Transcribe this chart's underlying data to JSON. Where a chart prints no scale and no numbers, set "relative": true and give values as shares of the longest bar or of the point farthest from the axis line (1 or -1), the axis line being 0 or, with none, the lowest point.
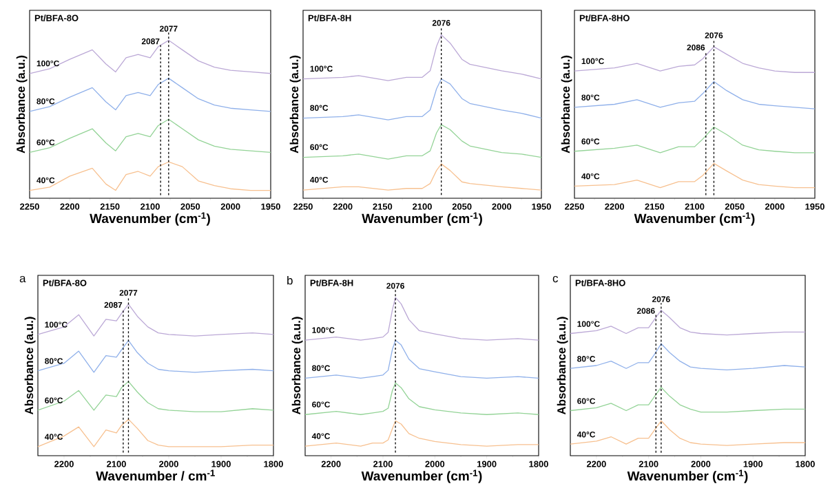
{
  "chart_data": [
    {
      "type": "line",
      "relative": true,
      "title": "Pt/BFA-8O",
      "xlabel": "Wavenumber (cm$^{-1}$)",
      "ylabel": "Absorbance (a.u.)",
      "xlim": [
        2250,
        1950
      ],
      "xticks": [
        2250,
        2200,
        2150,
        2100,
        2050,
        2000,
        1950
      ],
      "x": [
        2250,
        2225,
        2200,
        2172,
        2155,
        2143,
        2130,
        2115,
        2100,
        2090,
        2077,
        2060,
        2040,
        2020,
        2000,
        1975,
        1950
      ],
      "series": [
        {
          "name": "100°C",
          "color": "#bba8d6",
          "values": [
            0.79,
            0.82,
            0.88,
            0.94,
            0.85,
            0.8,
            0.89,
            0.91,
            0.89,
            0.96,
            1.0,
            0.94,
            0.87,
            0.83,
            0.81,
            0.8,
            0.79
          ]
        },
        {
          "name": "80°C",
          "color": "#8fb0ea",
          "values": [
            0.55,
            0.58,
            0.64,
            0.7,
            0.61,
            0.56,
            0.65,
            0.67,
            0.65,
            0.72,
            0.76,
            0.7,
            0.63,
            0.59,
            0.57,
            0.56,
            0.55
          ]
        },
        {
          "name": "60°C",
          "color": "#93d396",
          "values": [
            0.29,
            0.32,
            0.38,
            0.44,
            0.35,
            0.3,
            0.39,
            0.41,
            0.39,
            0.46,
            0.5,
            0.44,
            0.37,
            0.33,
            0.31,
            0.3,
            0.29
          ]
        },
        {
          "name": "40°C",
          "color": "#f7c08f",
          "values": [
            0.05,
            0.07,
            0.14,
            0.19,
            0.09,
            0.05,
            0.15,
            0.17,
            0.14,
            0.2,
            0.23,
            0.2,
            0.11,
            0.08,
            0.06,
            0.05,
            0.05
          ]
        }
      ],
      "ref_lines": [
        {
          "axis": "x",
          "value": 2087,
          "label": "2087",
          "color": "#000000",
          "line_style": "dashed"
        },
        {
          "axis": "x",
          "value": 2077,
          "label": "2077",
          "color": "#000000",
          "line_style": "dashed"
        }
      ]
    },
    {
      "type": "line",
      "relative": true,
      "title": "Pt/BFA-8H",
      "xlabel": "Wavenumber (cm$^{-1}$)",
      "ylabel": "Absorbance (a.u.)",
      "xlim": [
        2250,
        1950
      ],
      "xticks": [
        2250,
        2200,
        2150,
        2100,
        2050,
        2000,
        1950
      ],
      "x": [
        2250,
        2200,
        2180,
        2143,
        2120,
        2100,
        2090,
        2082,
        2076,
        2065,
        2050,
        2040,
        2020,
        2000,
        1975,
        1950
      ],
      "series": [
        {
          "name": "100°C",
          "color": "#bba8d6",
          "values": [
            0.73,
            0.74,
            0.75,
            0.72,
            0.74,
            0.74,
            0.78,
            0.93,
            1.0,
            0.95,
            0.85,
            0.82,
            0.8,
            0.78,
            0.76,
            0.73
          ]
        },
        {
          "name": "80°C",
          "color": "#8fb0ea",
          "values": [
            0.49,
            0.5,
            0.51,
            0.48,
            0.5,
            0.5,
            0.54,
            0.67,
            0.73,
            0.7,
            0.61,
            0.58,
            0.56,
            0.54,
            0.52,
            0.49
          ]
        },
        {
          "name": "60°C",
          "color": "#93d396",
          "values": [
            0.25,
            0.26,
            0.27,
            0.24,
            0.26,
            0.26,
            0.29,
            0.4,
            0.45,
            0.42,
            0.35,
            0.32,
            0.3,
            0.28,
            0.27,
            0.25
          ]
        },
        {
          "name": "40°C",
          "color": "#f7c08f",
          "values": [
            0.05,
            0.07,
            0.07,
            0.05,
            0.06,
            0.06,
            0.09,
            0.17,
            0.21,
            0.17,
            0.1,
            0.09,
            0.08,
            0.07,
            0.06,
            0.05
          ]
        }
      ],
      "ref_lines": [
        {
          "axis": "x",
          "value": 2076,
          "label": "2076",
          "color": "#000000",
          "line_style": "dashed"
        }
      ]
    },
    {
      "type": "line",
      "relative": true,
      "title": "Pt/BFA-8HO",
      "xlabel": "Wavenumber (cm$^{-1}$)",
      "ylabel": "Absorbance (a.u.)",
      "xlim": [
        2250,
        1950
      ],
      "xticks": [
        2250,
        2200,
        2150,
        2100,
        2050,
        2000,
        1950
      ],
      "x": [
        2250,
        2200,
        2172,
        2143,
        2120,
        2100,
        2090,
        2076,
        2060,
        2040,
        2020,
        2000,
        1975,
        1950
      ],
      "series": [
        {
          "name": "100°C",
          "color": "#bba8d6",
          "values": [
            0.84,
            0.86,
            0.89,
            0.84,
            0.87,
            0.88,
            0.92,
            1.0,
            0.95,
            0.89,
            0.86,
            0.84,
            0.83,
            0.83
          ]
        },
        {
          "name": "80°C",
          "color": "#8fb0ea",
          "values": [
            0.6,
            0.62,
            0.65,
            0.6,
            0.63,
            0.64,
            0.69,
            0.77,
            0.71,
            0.65,
            0.62,
            0.61,
            0.6,
            0.59
          ]
        },
        {
          "name": "60°C",
          "color": "#93d396",
          "values": [
            0.31,
            0.33,
            0.35,
            0.3,
            0.34,
            0.34,
            0.39,
            0.47,
            0.42,
            0.35,
            0.32,
            0.31,
            0.3,
            0.3
          ]
        },
        {
          "name": "40°C",
          "color": "#f7c08f",
          "values": [
            0.08,
            0.09,
            0.12,
            0.07,
            0.11,
            0.11,
            0.15,
            0.23,
            0.18,
            0.12,
            0.09,
            0.08,
            0.07,
            0.07
          ]
        }
      ],
      "ref_lines": [
        {
          "axis": "x",
          "value": 2086,
          "label": "2086",
          "color": "#000000",
          "line_style": "dashed"
        },
        {
          "axis": "x",
          "value": 2076,
          "label": "2076",
          "color": "#000000",
          "line_style": "dashed"
        }
      ]
    },
    {
      "type": "line",
      "relative": true,
      "title": "Pt/BFA-8O",
      "xlabel": "Wavenumber / cm$^{-1}$",
      "ylabel": "Absorbance (a.u.)",
      "annotations": [
        "a"
      ],
      "xlim": [
        2250,
        1800
      ],
      "xticks": [
        2200,
        2100,
        2000,
        1900,
        1800
      ],
      "x": [
        2250,
        2200,
        2172,
        2143,
        2120,
        2100,
        2090,
        2077,
        2060,
        2040,
        2020,
        2000,
        1950,
        1900,
        1840,
        1800
      ],
      "series": [
        {
          "name": "100°C",
          "color": "#bba8d6",
          "values": [
            0.8,
            0.85,
            0.93,
            0.79,
            0.9,
            0.89,
            0.94,
            1.0,
            0.92,
            0.85,
            0.81,
            0.8,
            0.79,
            0.8,
            0.81,
            0.8
          ]
        },
        {
          "name": "80°C",
          "color": "#8fb0ea",
          "values": [
            0.56,
            0.61,
            0.69,
            0.55,
            0.66,
            0.65,
            0.7,
            0.76,
            0.68,
            0.61,
            0.57,
            0.56,
            0.55,
            0.56,
            0.57,
            0.56
          ]
        },
        {
          "name": "60°C",
          "color": "#93d396",
          "values": [
            0.3,
            0.36,
            0.43,
            0.3,
            0.4,
            0.39,
            0.45,
            0.49,
            0.42,
            0.35,
            0.31,
            0.3,
            0.29,
            0.29,
            0.31,
            0.3
          ]
        },
        {
          "name": "40°C",
          "color": "#f7c08f",
          "values": [
            0.06,
            0.13,
            0.19,
            0.06,
            0.17,
            0.15,
            0.2,
            0.24,
            0.18,
            0.1,
            0.07,
            0.06,
            0.06,
            0.06,
            0.07,
            0.07
          ]
        }
      ],
      "ref_lines": [
        {
          "axis": "x",
          "value": 2087,
          "label": "2087",
          "color": "#000000",
          "line_style": "dashed"
        },
        {
          "axis": "x",
          "value": 2077,
          "label": "2077",
          "color": "#000000",
          "line_style": "dashed"
        }
      ]
    },
    {
      "type": "line",
      "relative": true,
      "title": "Pt/BFA-8H",
      "xlabel": "Wavenumber (cm$^{-1}$)",
      "ylabel": "Absorbance (a.u.)",
      "annotations": [
        "b"
      ],
      "xlim": [
        2250,
        1800
      ],
      "xticks": [
        2200,
        2100,
        2000,
        1900,
        1800
      ],
      "x": [
        2250,
        2190,
        2143,
        2120,
        2100,
        2090,
        2082,
        2076,
        2065,
        2050,
        2030,
        2000,
        1950,
        1900,
        1840,
        1800
      ],
      "series": [
        {
          "name": "100°C",
          "color": "#bba8d6",
          "values": [
            0.73,
            0.75,
            0.73,
            0.74,
            0.75,
            0.78,
            0.92,
            1.0,
            0.96,
            0.86,
            0.79,
            0.77,
            0.74,
            0.73,
            0.74,
            0.73
          ]
        },
        {
          "name": "80°C",
          "color": "#8fb0ea",
          "values": [
            0.49,
            0.51,
            0.49,
            0.5,
            0.51,
            0.54,
            0.67,
            0.73,
            0.7,
            0.61,
            0.55,
            0.53,
            0.5,
            0.49,
            0.5,
            0.49
          ]
        },
        {
          "name": "60°C",
          "color": "#93d396",
          "values": [
            0.26,
            0.28,
            0.26,
            0.27,
            0.28,
            0.3,
            0.41,
            0.46,
            0.43,
            0.36,
            0.31,
            0.29,
            0.27,
            0.26,
            0.27,
            0.26
          ]
        },
        {
          "name": "40°C",
          "color": "#f7c08f",
          "values": [
            0.06,
            0.08,
            0.06,
            0.08,
            0.08,
            0.1,
            0.17,
            0.22,
            0.2,
            0.14,
            0.11,
            0.09,
            0.07,
            0.06,
            0.07,
            0.07
          ]
        }
      ],
      "ref_lines": [
        {
          "axis": "x",
          "value": 2076,
          "label": "2076",
          "color": "#000000",
          "line_style": "dashed"
        }
      ]
    },
    {
      "type": "line",
      "relative": true,
      "title": "Pt/BFA-8HO",
      "xlabel": "Wavenumber (cm$^{-1}$)",
      "ylabel": "Absorbance (a.u.)",
      "annotations": [
        "c"
      ],
      "xlim": [
        2250,
        1800
      ],
      "xticks": [
        2200,
        2100,
        2000,
        1900,
        1800
      ],
      "x": [
        2250,
        2200,
        2172,
        2143,
        2120,
        2100,
        2090,
        2076,
        2060,
        2040,
        2020,
        2000,
        1950,
        1900,
        1840,
        1800
      ],
      "series": [
        {
          "name": "100°C",
          "color": "#bba8d6",
          "values": [
            0.84,
            0.86,
            0.89,
            0.84,
            0.88,
            0.88,
            0.93,
            1.0,
            0.95,
            0.88,
            0.85,
            0.84,
            0.83,
            0.84,
            0.85,
            0.85
          ]
        },
        {
          "name": "80°C",
          "color": "#8fb0ea",
          "values": [
            0.6,
            0.62,
            0.65,
            0.6,
            0.64,
            0.64,
            0.69,
            0.77,
            0.71,
            0.65,
            0.61,
            0.6,
            0.59,
            0.6,
            0.62,
            0.61
          ]
        },
        {
          "name": "60°C",
          "color": "#93d396",
          "values": [
            0.31,
            0.33,
            0.36,
            0.31,
            0.35,
            0.35,
            0.4,
            0.47,
            0.41,
            0.35,
            0.32,
            0.3,
            0.3,
            0.31,
            0.32,
            0.32
          ]
        },
        {
          "name": "40°C",
          "color": "#f7c08f",
          "values": [
            0.08,
            0.1,
            0.13,
            0.08,
            0.12,
            0.12,
            0.17,
            0.24,
            0.18,
            0.12,
            0.09,
            0.08,
            0.07,
            0.08,
            0.09,
            0.09
          ]
        }
      ],
      "ref_lines": [
        {
          "axis": "x",
          "value": 2086,
          "label": "2086",
          "color": "#000000",
          "line_style": "dashed"
        },
        {
          "axis": "x",
          "value": 2076,
          "label": "2076",
          "color": "#000000",
          "line_style": "dashed"
        }
      ]
    }
  ]
}
